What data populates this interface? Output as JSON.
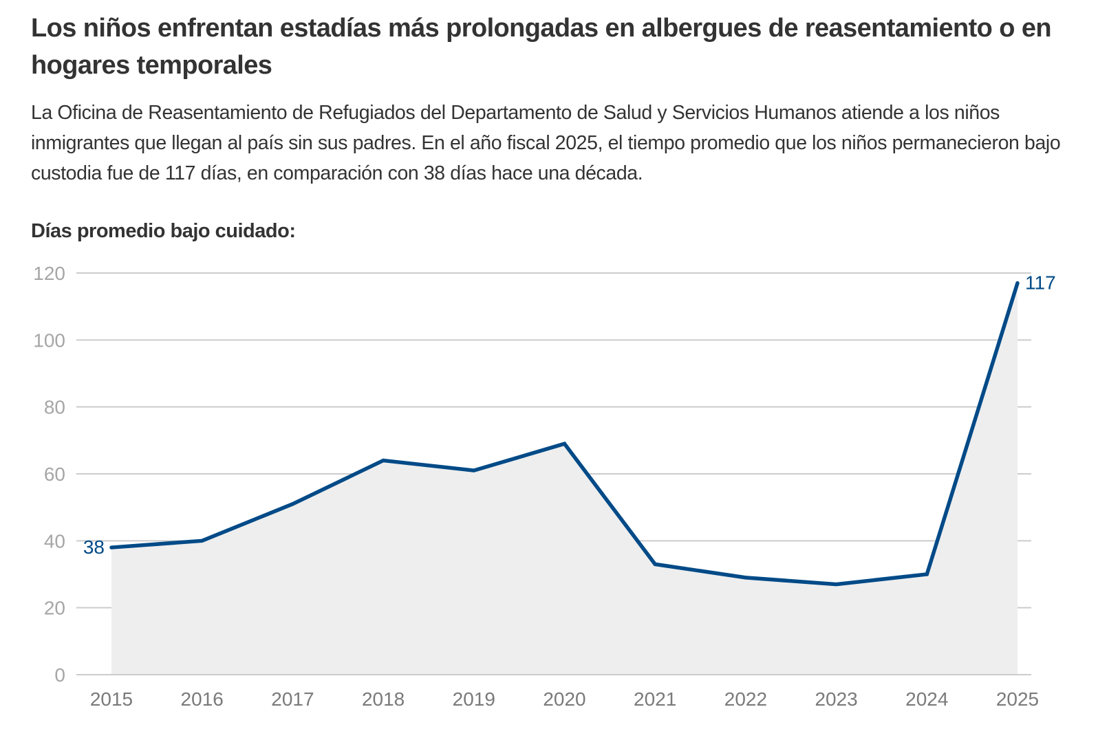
{
  "header": {
    "title": "Los niños enfrentan estadías más prolongadas en albergues de reasentamiento o en hogares temporales",
    "subtitle": "La Oficina de Reasentamiento de Refugiados del Departamento de Salud y Servicios Humanos atiende a los niños inmigrantes que llegan al país sin sus padres. En el año fiscal 2025, el tiempo promedio que los niños permanecieron bajo custodia fue de 117 días, en comparación con 38 días hace una década."
  },
  "colors": {
    "line": "#004a87",
    "area": "#eeeeee",
    "grid": "#cccccc",
    "text": "#333333"
  },
  "chart_data": {
    "type": "area",
    "title": "Días promedio bajo cuidado:",
    "xlabel": "",
    "ylabel": "",
    "x": [
      "2015",
      "2016",
      "2017",
      "2018",
      "2019",
      "2020",
      "2021",
      "2022",
      "2023",
      "2024",
      "2025"
    ],
    "series": [
      {
        "name": "Días promedio bajo cuidado",
        "values": [
          38,
          40,
          51,
          64,
          61,
          69,
          33,
          29,
          27,
          30,
          117
        ]
      }
    ],
    "ylim": [
      0,
      120
    ],
    "yticks": [
      0,
      20,
      40,
      60,
      80,
      100,
      120
    ],
    "grid": true,
    "legend": "none",
    "annotations": [
      {
        "x": "2015",
        "text": "38",
        "position": "left"
      },
      {
        "x": "2025",
        "text": "117",
        "position": "right"
      }
    ]
  }
}
